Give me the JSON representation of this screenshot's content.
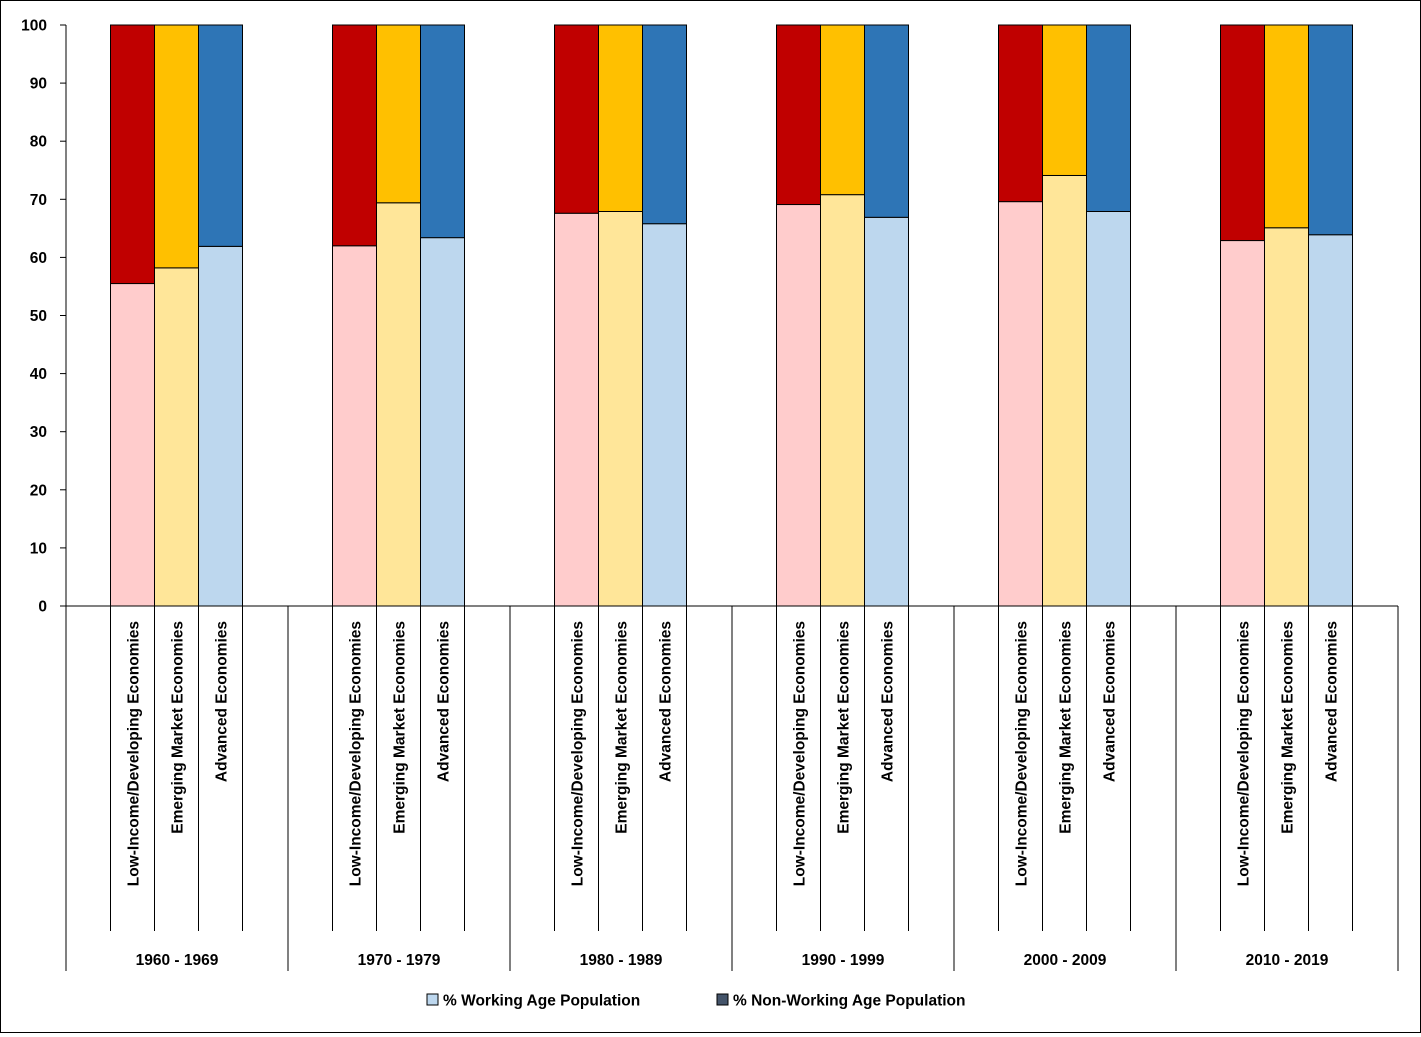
{
  "chart_data": {
    "type": "bar",
    "stacked": true,
    "ylim": [
      0,
      100
    ],
    "yticks": [
      0,
      10,
      20,
      30,
      40,
      50,
      60,
      70,
      80,
      90,
      100
    ],
    "grid": false,
    "legend_position": "bottom",
    "groups": [
      "1960 - 1969",
      "1970 - 1979",
      "1980 - 1989",
      "1990 - 1999",
      "2000 - 2009",
      "2010 - 2019"
    ],
    "categories": [
      "Low-Income/Developing Economies",
      "Emerging Market Economies",
      "Advanced Economies"
    ],
    "category_colors": {
      "working": [
        "#ffcccc",
        "#ffe699",
        "#bdd7ee"
      ],
      "non_working": [
        "#c00000",
        "#ffc000",
        "#2e75b6"
      ]
    },
    "series": [
      {
        "name": "% Working Age Population",
        "legend_color": "#bdd7ee",
        "values": [
          [
            55.5,
            58.2,
            61.9
          ],
          [
            62.0,
            69.4,
            63.4
          ],
          [
            67.6,
            67.9,
            65.8
          ],
          [
            69.1,
            70.8,
            66.9
          ],
          [
            69.6,
            74.1,
            67.9
          ],
          [
            62.9,
            65.1,
            63.9
          ]
        ]
      },
      {
        "name": "% Non-Working Age Population",
        "legend_color": "#44546a",
        "values": [
          [
            44.5,
            41.8,
            38.1
          ],
          [
            38.0,
            30.6,
            36.6
          ],
          [
            32.4,
            32.1,
            34.2
          ],
          [
            30.9,
            29.2,
            33.1
          ],
          [
            30.4,
            25.9,
            32.1
          ],
          [
            37.1,
            34.9,
            36.1
          ]
        ]
      }
    ]
  }
}
